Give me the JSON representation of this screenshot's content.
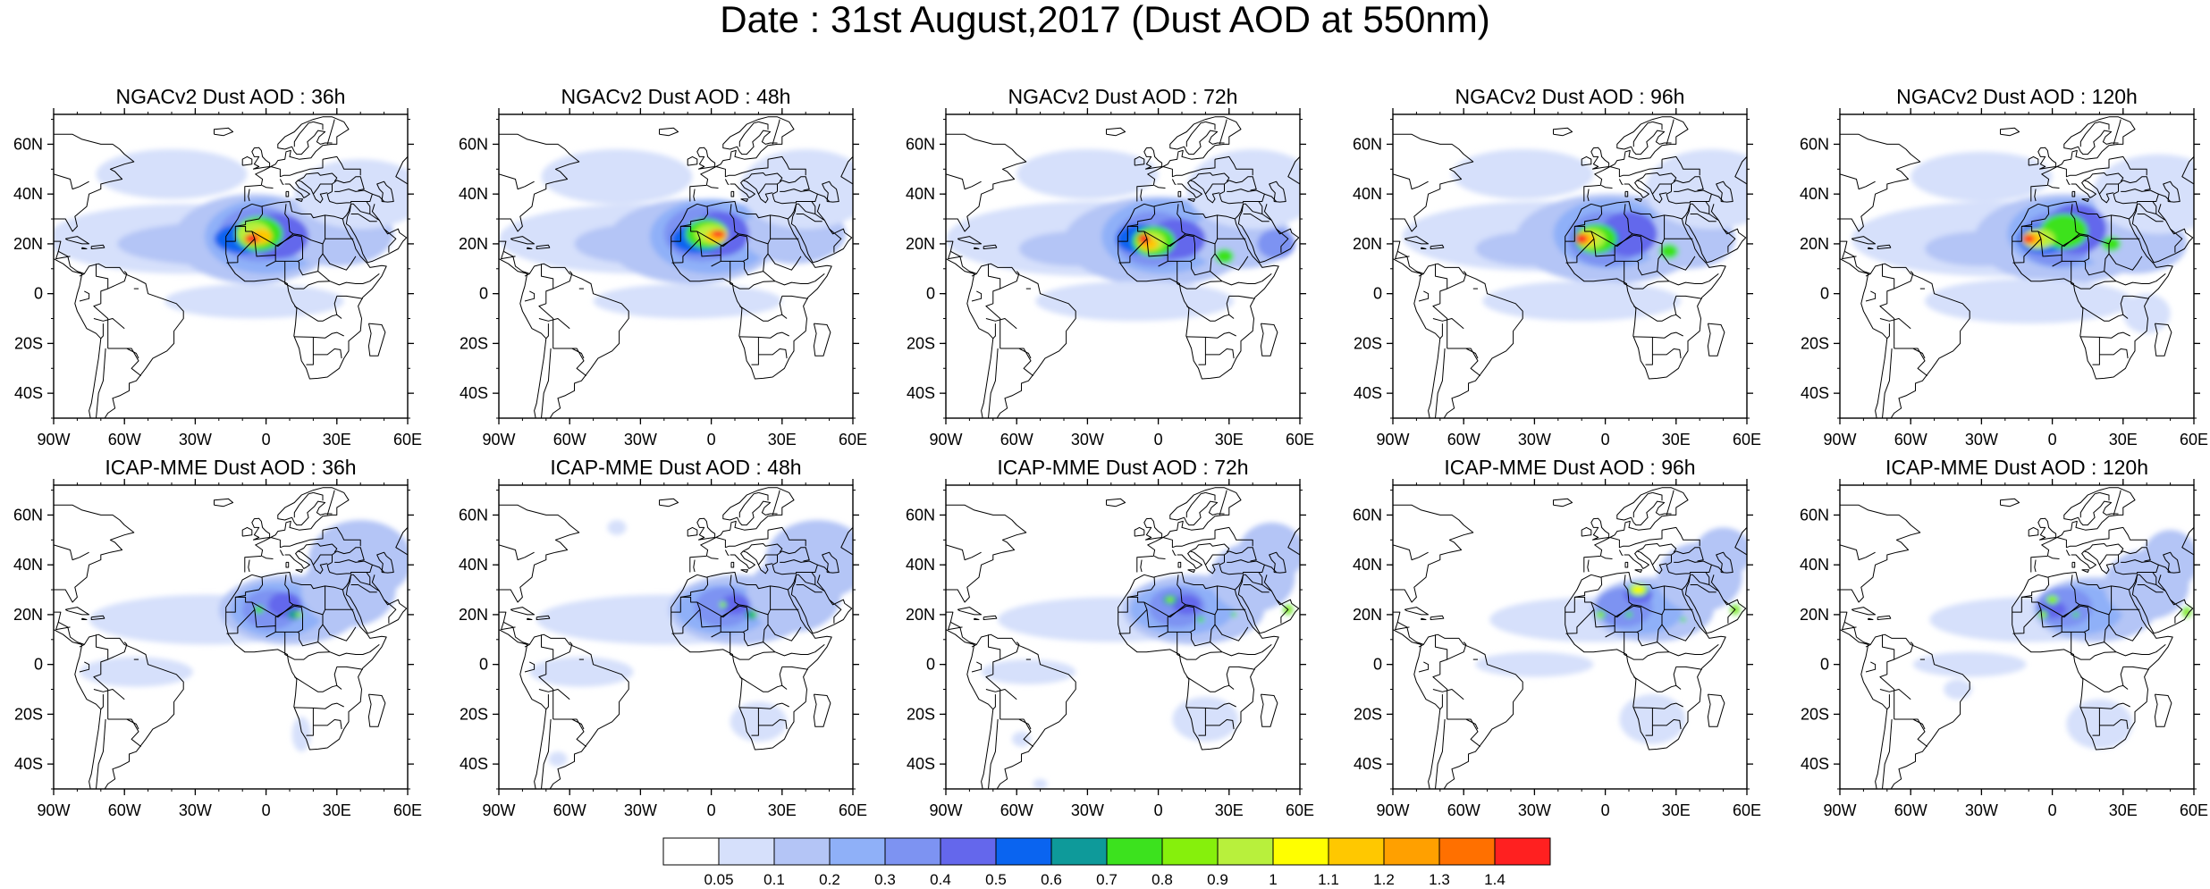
{
  "title": "Date : 31st August,2017 (Dust AOD at 550nm)",
  "panels": [
    {
      "model": "NGACv2",
      "title": "NGACv2 Dust AOD : 36h"
    },
    {
      "model": "NGACv2",
      "title": "NGACv2 Dust AOD : 48h"
    },
    {
      "model": "NGACv2",
      "title": "NGACv2 Dust AOD : 72h"
    },
    {
      "model": "NGACv2",
      "title": "NGACv2 Dust AOD : 96h"
    },
    {
      "model": "NGACv2",
      "title": "NGACv2 Dust AOD : 120h"
    },
    {
      "model": "ICAP-MME",
      "title": "ICAP-MME Dust AOD : 36h"
    },
    {
      "model": "ICAP-MME",
      "title": "ICAP-MME Dust AOD : 48h"
    },
    {
      "model": "ICAP-MME",
      "title": "ICAP-MME Dust AOD : 72h"
    },
    {
      "model": "ICAP-MME",
      "title": "ICAP-MME Dust AOD : 96h"
    },
    {
      "model": "ICAP-MME",
      "title": "ICAP-MME Dust AOD : 120h"
    }
  ],
  "lon_ticks": [
    "90W",
    "60W",
    "30W",
    "0",
    "30E",
    "60E"
  ],
  "lat_ticks": [
    "60N",
    "40N",
    "20N",
    "0",
    "20S",
    "40S"
  ],
  "lon_range": [
    -90,
    60
  ],
  "lat_range": [
    -50,
    72
  ],
  "colorbar": {
    "labels": [
      "0.05",
      "0.1",
      "0.2",
      "0.3",
      "0.4",
      "0.5",
      "0.6",
      "0.7",
      "0.8",
      "0.9",
      "1",
      "1.1",
      "1.2",
      "1.3",
      "1.4"
    ],
    "colors": [
      "#ffffff",
      "#d6e0fb",
      "#b4c5f6",
      "#8fb0f8",
      "#7d93f2",
      "#6467ec",
      "#0a64f0",
      "#0e9a9a",
      "#3ce21e",
      "#86f00c",
      "#b8f03c",
      "#ffff00",
      "#ffc800",
      "#ffa000",
      "#ff7000",
      "#ff2020"
    ]
  }
}
